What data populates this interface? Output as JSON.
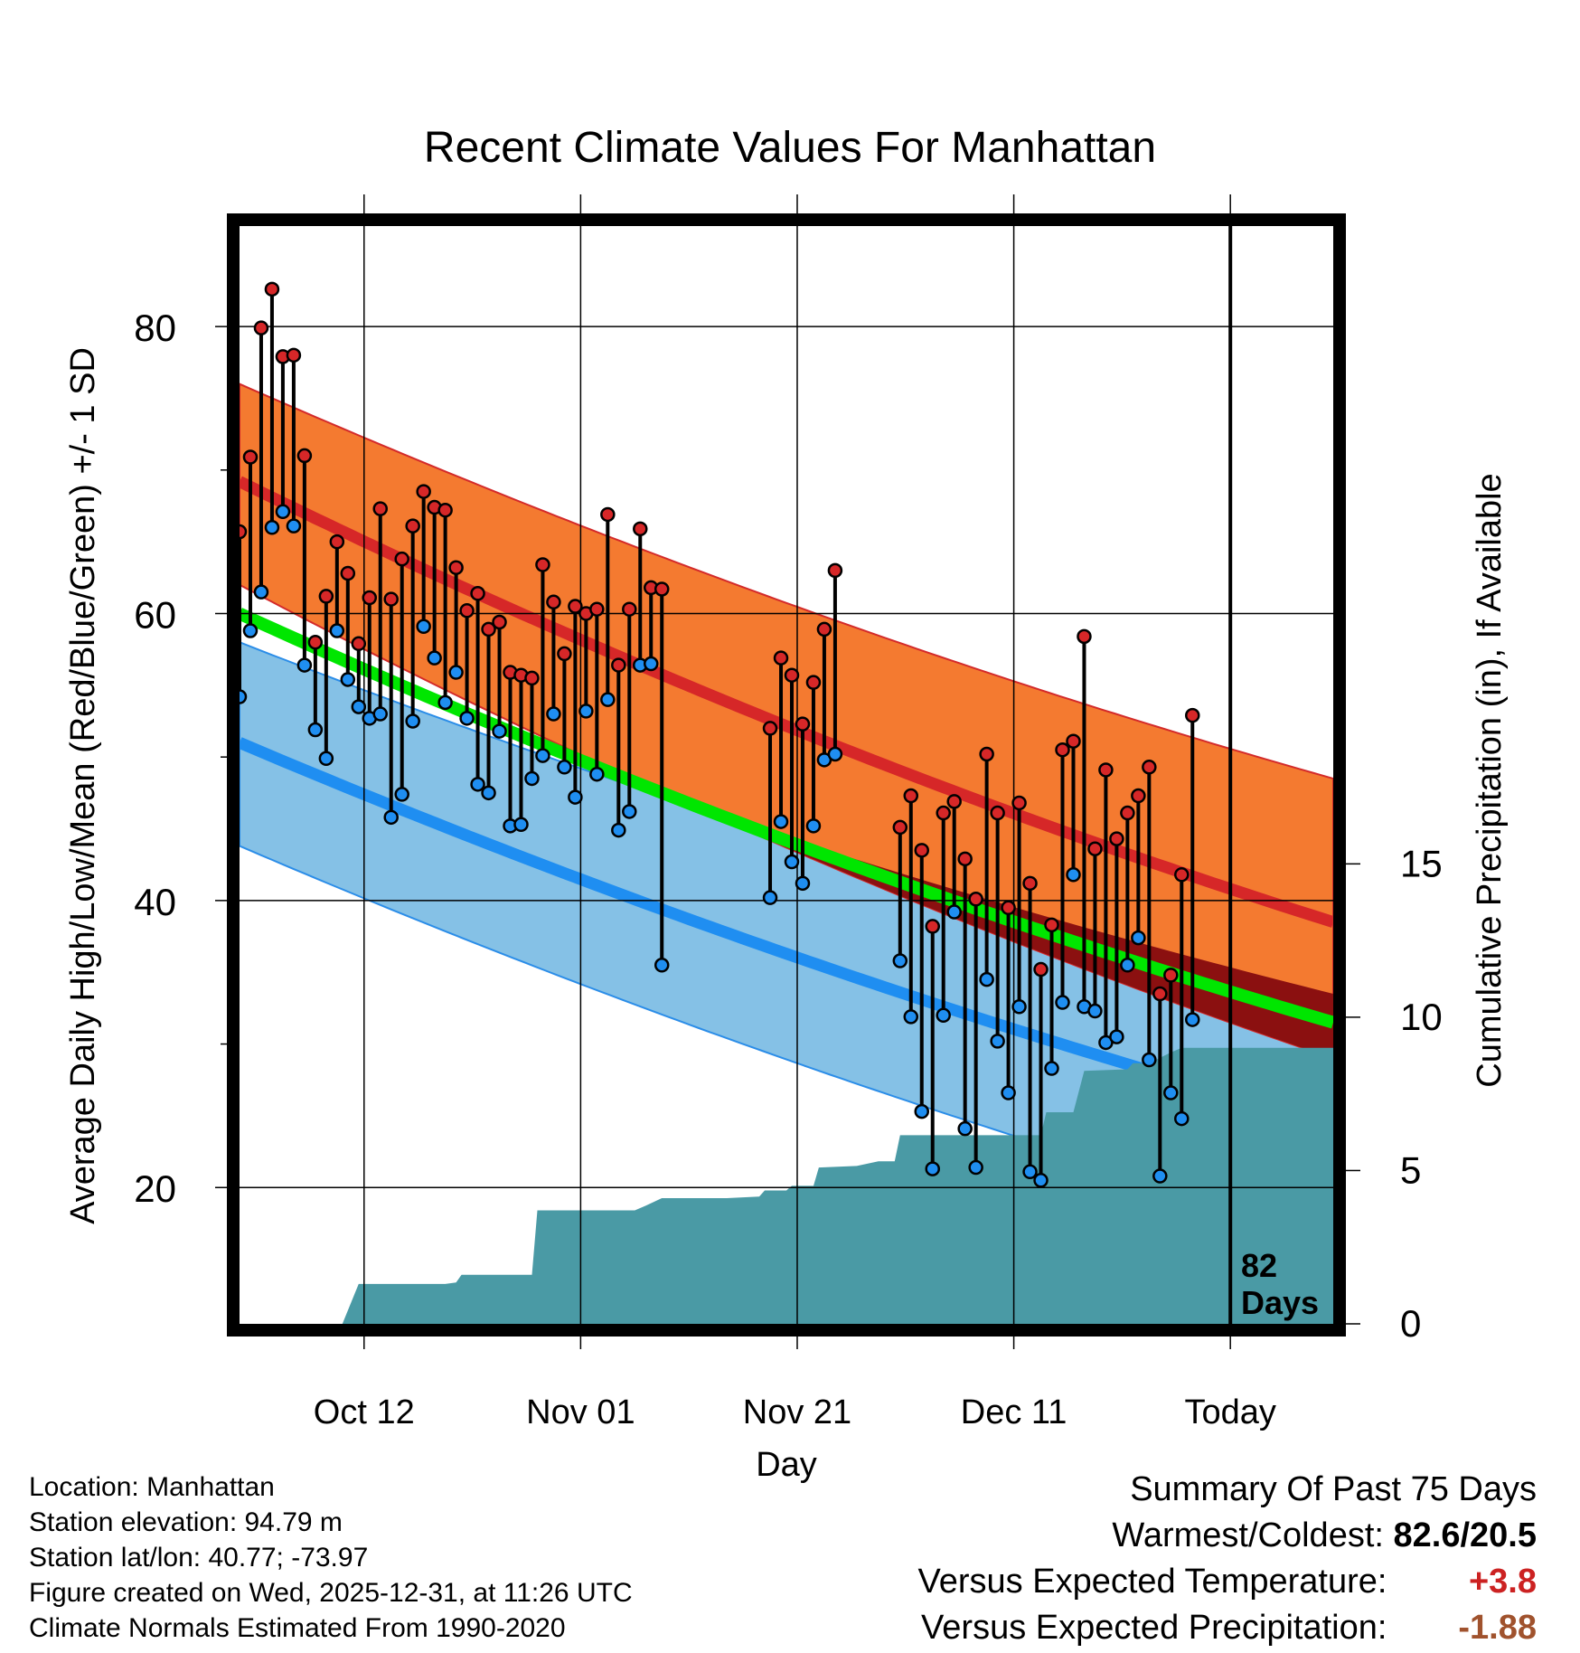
{
  "title": "Recent Climate Values For Manhattan",
  "chart_data": {
    "type": "line",
    "title": "Recent Climate Values For Manhattan",
    "xlabel": "Day",
    "ylabel_left": "Average Daily High/Low/Mean (Red/Blue/Green) +/- 1 SD",
    "ylabel_right": "Cumulative Precipitation (in), If Available",
    "ylim": [
      10.5,
      87
    ],
    "y2lim": [
      0,
      35.8
    ],
    "xlim": [
      0,
      101
    ],
    "x_ticks": [
      {
        "day": 11.5,
        "label": "Oct 12"
      },
      {
        "day": 31.5,
        "label": "Nov 01"
      },
      {
        "day": 51.5,
        "label": "Nov 21"
      },
      {
        "day": 71.5,
        "label": "Dec 11"
      },
      {
        "day": 91.5,
        "label": "Today"
      }
    ],
    "y_ticks": [
      20,
      40,
      60,
      80
    ],
    "y_minor_ticks": [
      30,
      50,
      70
    ],
    "y2_ticks": [
      0,
      5,
      10,
      15
    ],
    "today_day": 91.5,
    "period_label": "82",
    "period_unit": "Days",
    "normals": {
      "day": [
        0,
        101
      ],
      "high_mean": [
        69.2,
        38.5
      ],
      "high_upper": [
        76.0,
        48.5
      ],
      "high_lower": [
        62.0,
        29.0
      ],
      "low_mean": [
        51.0,
        24.5
      ],
      "low_upper": [
        58.0,
        33.5
      ],
      "low_lower": [
        43.8,
        17.0
      ],
      "mean": [
        60.0,
        31.5
      ],
      "curve": 0.22
    },
    "series": [
      {
        "name": "High",
        "color": "#d62728",
        "values": [
          [
            0,
            65.7
          ],
          [
            1,
            70.9
          ],
          [
            2,
            79.9
          ],
          [
            3,
            82.6
          ],
          [
            4,
            77.9
          ],
          [
            5,
            78.0
          ],
          [
            6,
            71.0
          ],
          [
            7,
            58.0
          ],
          [
            8,
            61.2
          ],
          [
            9,
            65.0
          ],
          [
            10,
            62.8
          ],
          [
            11,
            57.9
          ],
          [
            12,
            61.1
          ],
          [
            13,
            67.3
          ],
          [
            14,
            61.0
          ],
          [
            15,
            63.8
          ],
          [
            16,
            66.1
          ],
          [
            17,
            68.5
          ],
          [
            18,
            67.4
          ],
          [
            19,
            67.2
          ],
          [
            20,
            63.2
          ],
          [
            21,
            60.2
          ],
          [
            22,
            61.4
          ],
          [
            23,
            58.9
          ],
          [
            24,
            59.4
          ],
          [
            25,
            55.9
          ],
          [
            26,
            55.7
          ],
          [
            27,
            55.5
          ],
          [
            28,
            63.4
          ],
          [
            29,
            60.8
          ],
          [
            30,
            57.2
          ],
          [
            31,
            60.5
          ],
          [
            32,
            60.0
          ],
          [
            33,
            60.3
          ],
          [
            34,
            66.9
          ],
          [
            35,
            56.4
          ],
          [
            36,
            60.3
          ],
          [
            37,
            65.9
          ],
          [
            38,
            61.8
          ],
          [
            39,
            61.7
          ],
          [
            49,
            52.0
          ],
          [
            50,
            56.9
          ],
          [
            51,
            55.7
          ],
          [
            52,
            52.3
          ],
          [
            53,
            55.2
          ],
          [
            54,
            58.9
          ],
          [
            55,
            63.0
          ],
          [
            61,
            45.1
          ],
          [
            62,
            47.3
          ],
          [
            63,
            43.5
          ],
          [
            64,
            38.2
          ],
          [
            65,
            46.1
          ],
          [
            66,
            46.9
          ],
          [
            67,
            42.9
          ],
          [
            68,
            40.1
          ],
          [
            69,
            50.2
          ],
          [
            70,
            46.1
          ],
          [
            71,
            39.5
          ],
          [
            72,
            46.8
          ],
          [
            73,
            41.2
          ],
          [
            74,
            35.2
          ],
          [
            75,
            38.3
          ],
          [
            76,
            50.5
          ],
          [
            77,
            51.1
          ],
          [
            78,
            58.4
          ],
          [
            79,
            43.6
          ],
          [
            80,
            49.1
          ],
          [
            81,
            44.3
          ],
          [
            82,
            46.1
          ],
          [
            83,
            47.3
          ],
          [
            84,
            49.3
          ],
          [
            85,
            33.5
          ],
          [
            86,
            34.8
          ],
          [
            87,
            41.8
          ],
          [
            88,
            52.9
          ]
        ]
      },
      {
        "name": "Low",
        "color": "#1f8ef1",
        "values": [
          [
            0,
            54.2
          ],
          [
            1,
            58.8
          ],
          [
            2,
            61.5
          ],
          [
            3,
            66.0
          ],
          [
            4,
            67.1
          ],
          [
            5,
            66.1
          ],
          [
            6,
            56.4
          ],
          [
            7,
            51.9
          ],
          [
            8,
            49.9
          ],
          [
            9,
            58.8
          ],
          [
            10,
            55.4
          ],
          [
            11,
            53.5
          ],
          [
            12,
            52.7
          ],
          [
            13,
            53.0
          ],
          [
            14,
            45.8
          ],
          [
            15,
            47.4
          ],
          [
            16,
            52.5
          ],
          [
            17,
            59.1
          ],
          [
            18,
            56.9
          ],
          [
            19,
            53.8
          ],
          [
            20,
            55.9
          ],
          [
            21,
            52.7
          ],
          [
            22,
            48.1
          ],
          [
            23,
            47.5
          ],
          [
            24,
            51.8
          ],
          [
            25,
            45.2
          ],
          [
            26,
            45.3
          ],
          [
            27,
            48.5
          ],
          [
            28,
            50.1
          ],
          [
            29,
            53.0
          ],
          [
            30,
            49.3
          ],
          [
            31,
            47.2
          ],
          [
            32,
            53.2
          ],
          [
            33,
            48.8
          ],
          [
            34,
            54.0
          ],
          [
            35,
            44.9
          ],
          [
            36,
            46.2
          ],
          [
            37,
            56.4
          ],
          [
            38,
            56.5
          ],
          [
            39,
            35.5
          ],
          [
            49,
            40.2
          ],
          [
            50,
            45.5
          ],
          [
            51,
            42.7
          ],
          [
            52,
            41.2
          ],
          [
            53,
            45.2
          ],
          [
            54,
            49.8
          ],
          [
            55,
            50.2
          ],
          [
            61,
            35.8
          ],
          [
            62,
            31.9
          ],
          [
            63,
            25.3
          ],
          [
            64,
            21.3
          ],
          [
            65,
            32.0
          ],
          [
            66,
            39.2
          ],
          [
            67,
            24.1
          ],
          [
            68,
            21.4
          ],
          [
            69,
            34.5
          ],
          [
            70,
            30.2
          ],
          [
            71,
            26.6
          ],
          [
            72,
            32.6
          ],
          [
            73,
            21.1
          ],
          [
            74,
            20.5
          ],
          [
            75,
            28.3
          ],
          [
            76,
            32.9
          ],
          [
            77,
            41.8
          ],
          [
            78,
            32.6
          ],
          [
            79,
            32.3
          ],
          [
            80,
            30.1
          ],
          [
            81,
            30.5
          ],
          [
            82,
            35.5
          ],
          [
            83,
            37.4
          ],
          [
            84,
            28.9
          ],
          [
            85,
            20.8
          ],
          [
            86,
            26.6
          ],
          [
            87,
            24.8
          ],
          [
            88,
            31.7
          ]
        ]
      }
    ],
    "precip": {
      "name": "Cumulative Precipitation",
      "color": "#4a9aa5",
      "points": [
        [
          0,
          0
        ],
        [
          9.5,
          0
        ],
        [
          11,
          1.3
        ],
        [
          19,
          1.3
        ],
        [
          20,
          1.35
        ],
        [
          20.5,
          1.6
        ],
        [
          27,
          1.6
        ],
        [
          27.5,
          3.7
        ],
        [
          36.5,
          3.7
        ],
        [
          37.5,
          3.85
        ],
        [
          39,
          4.1
        ],
        [
          45,
          4.1
        ],
        [
          48,
          4.15
        ],
        [
          48.5,
          4.35
        ],
        [
          50.5,
          4.35
        ],
        [
          51,
          4.5
        ],
        [
          53,
          4.5
        ],
        [
          53.5,
          5.1
        ],
        [
          57,
          5.15
        ],
        [
          59,
          5.3
        ],
        [
          60.5,
          5.3
        ],
        [
          61,
          6.15
        ],
        [
          74,
          6.15
        ],
        [
          74.5,
          6.9
        ],
        [
          77,
          6.9
        ],
        [
          78,
          8.25
        ],
        [
          82,
          8.3
        ],
        [
          82.5,
          8.5
        ],
        [
          84,
          8.5
        ],
        [
          86,
          8.85
        ],
        [
          87,
          9.0
        ],
        [
          101,
          9.0
        ]
      ]
    }
  },
  "footer": {
    "location": "Location: Manhattan",
    "elevation": "Station elevation: 94.79 m",
    "latlon": "Station lat/lon: 40.77; -73.97",
    "created": "Figure created on Wed, 2025-12-31, at 11:26 UTC",
    "normals": "Climate Normals Estimated From 1990-2020"
  },
  "summary": {
    "heading": "Summary Of Past 75 Days",
    "warmest_label": "Warmest/Coldest:",
    "warmest_value": "82.6/20.5",
    "temp_label": "Versus Expected Temperature:",
    "temp_value": "+3.8",
    "temp_color": "#cc2222",
    "precip_label": "Versus Expected Precipitation:",
    "precip_value": "-1.88",
    "precip_color": "#a0522d"
  },
  "colors": {
    "high_band": "#f47a30",
    "high_line": "#d62728",
    "low_band": "#85c1e6",
    "low_line": "#1f8ef1",
    "mean_line": "#00e600",
    "overlap": "#8b1010",
    "precip": "#4a9aa5"
  }
}
